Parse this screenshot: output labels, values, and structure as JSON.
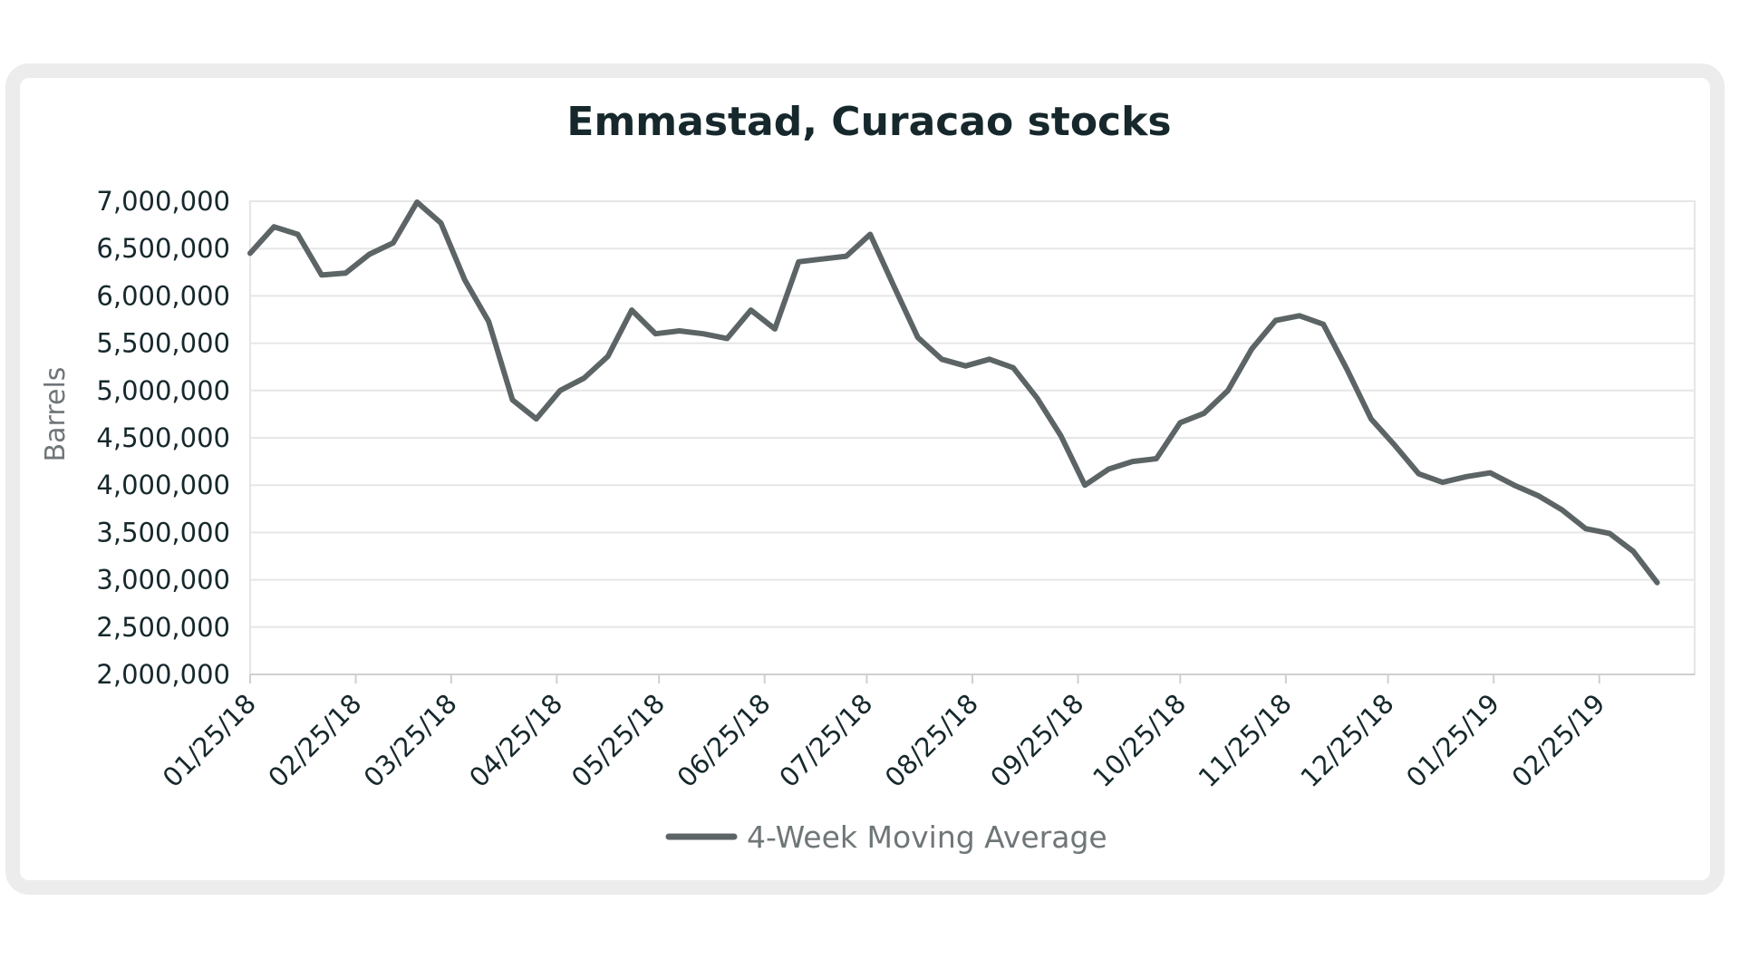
{
  "chart_data": {
    "type": "line",
    "title": "Emmastad, Curacao stocks",
    "xlabel": "",
    "ylabel": "Barrels",
    "ylim": [
      2000000,
      7000000
    ],
    "yticks": [
      2000000,
      2500000,
      3000000,
      3500000,
      4000000,
      4500000,
      5000000,
      5500000,
      6000000,
      6500000,
      7000000
    ],
    "ytick_labels": [
      "2,000,000",
      "2,500,000",
      "3,000,000",
      "3,500,000",
      "4,000,000",
      "4,500,000",
      "5,000,000",
      "5,500,000",
      "6,000,000",
      "6,500,000",
      "7,000,000"
    ],
    "xlim": [
      "2018-01-25",
      "2019-03-25"
    ],
    "xticks": [
      "2018-01-25",
      "2018-02-25",
      "2018-03-25",
      "2018-04-25",
      "2018-05-25",
      "2018-06-25",
      "2018-07-25",
      "2018-08-25",
      "2018-09-25",
      "2018-10-25",
      "2018-11-25",
      "2018-12-25",
      "2019-01-25",
      "2019-02-25"
    ],
    "xtick_labels": [
      "01/25/18",
      "02/25/18",
      "03/25/18",
      "04/25/18",
      "05/25/18",
      "06/25/18",
      "07/25/18",
      "08/25/18",
      "09/25/18",
      "10/25/18",
      "11/25/18",
      "12/25/18",
      "01/25/19",
      "02/25/19"
    ],
    "grid": true,
    "legend_position": "bottom-center",
    "color": "#5c6466",
    "series": [
      {
        "name": "4-Week Moving Average",
        "x": [
          "2018-01-25",
          "2018-02-01",
          "2018-02-08",
          "2018-02-15",
          "2018-02-22",
          "2018-03-01",
          "2018-03-08",
          "2018-03-15",
          "2018-03-22",
          "2018-03-29",
          "2018-04-05",
          "2018-04-12",
          "2018-04-19",
          "2018-04-26",
          "2018-05-03",
          "2018-05-10",
          "2018-05-17",
          "2018-05-24",
          "2018-05-31",
          "2018-06-07",
          "2018-06-14",
          "2018-06-21",
          "2018-06-28",
          "2018-07-05",
          "2018-07-12",
          "2018-07-19",
          "2018-07-26",
          "2018-08-02",
          "2018-08-09",
          "2018-08-16",
          "2018-08-23",
          "2018-08-30",
          "2018-09-06",
          "2018-09-13",
          "2018-09-20",
          "2018-09-27",
          "2018-10-04",
          "2018-10-11",
          "2018-10-18",
          "2018-10-25",
          "2018-11-01",
          "2018-11-08",
          "2018-11-15",
          "2018-11-22",
          "2018-11-29",
          "2018-12-06",
          "2018-12-13",
          "2018-12-20",
          "2018-12-27",
          "2019-01-03",
          "2019-01-10",
          "2019-01-17",
          "2019-01-24",
          "2019-01-31",
          "2019-02-07",
          "2019-02-14",
          "2019-02-21",
          "2019-02-28",
          "2019-03-07",
          "2019-03-14"
        ],
        "values": [
          6450000,
          6730000,
          6650000,
          6220000,
          6240000,
          6440000,
          6560000,
          6990000,
          6770000,
          6170000,
          5730000,
          4900000,
          4700000,
          5000000,
          5130000,
          5360000,
          5850000,
          5600000,
          5630000,
          5600000,
          5550000,
          5850000,
          5650000,
          6360000,
          6390000,
          6420000,
          6650000,
          6100000,
          5560000,
          5330000,
          5260000,
          5330000,
          5240000,
          4920000,
          4520000,
          4000000,
          4170000,
          4250000,
          4280000,
          4660000,
          4760000,
          5000000,
          5440000,
          5740000,
          5790000,
          5700000,
          5220000,
          4700000,
          4420000,
          4120000,
          4030000,
          4090000,
          4130000,
          4000000,
          3890000,
          3740000,
          3540000,
          3490000,
          3300000,
          2970000
        ]
      }
    ]
  }
}
